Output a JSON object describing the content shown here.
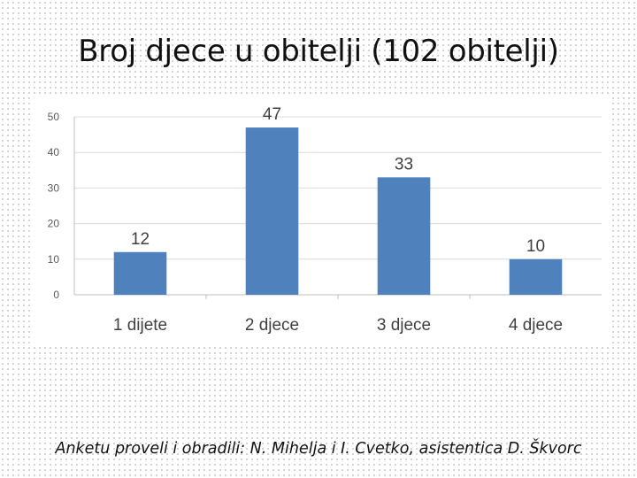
{
  "slide": {
    "title": "Broj djece u obitelji (102 obitelji)",
    "footer": "Anketu proveli i obradili: N. Mihelja i I. Cvetko, asistentica D. Škvorc"
  },
  "chart_data": {
    "type": "bar",
    "categories": [
      "1 dijete",
      "2 djece",
      "3 djece",
      "4 djece"
    ],
    "values": [
      12,
      47,
      33,
      10
    ],
    "ylim": [
      0,
      50
    ],
    "yticks": [
      0,
      10,
      20,
      30,
      40,
      50
    ],
    "grid": true,
    "legend": "none",
    "bar_color": "#4f81bd",
    "grid_color": "#d9d9d9",
    "tick_label_color": "#595959",
    "data_label_color": "#404040"
  }
}
